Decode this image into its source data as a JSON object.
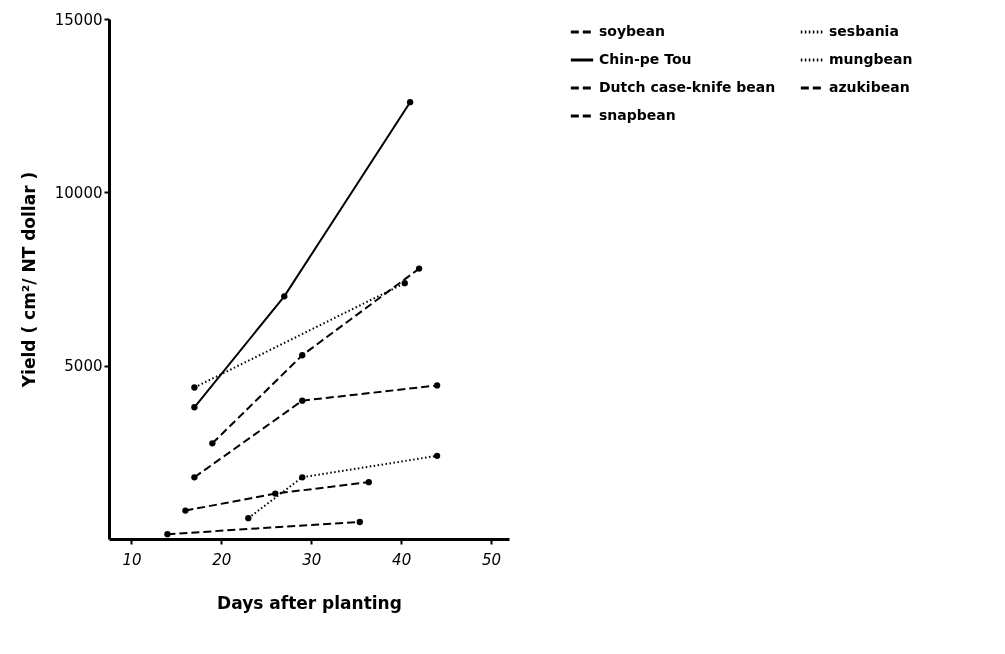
{
  "chart_data": {
    "type": "line",
    "xlabel": "Days after planting",
    "ylabel": "Yield ( cm²/ NT dollar )",
    "xlim": [
      7.5,
      52
    ],
    "xticks": [
      10,
      20,
      30,
      40,
      50
    ],
    "ylim": [
      0,
      15000
    ],
    "yticks": [
      5000,
      10000,
      15000
    ],
    "grid": false,
    "legend": "right",
    "marker": "circle",
    "series": [
      {
        "name": "soybean",
        "color": "#000000",
        "line_style": "dashed",
        "x": [
          16,
          26,
          36.4
        ],
        "values": [
          820,
          1310,
          1640
        ]
      },
      {
        "name": "Chin-pe Tou",
        "color": "#000000",
        "line_style": "solid",
        "x": [
          17,
          27,
          41
        ],
        "values": [
          3800,
          7000,
          12600
        ]
      },
      {
        "name": "Dutch case-knife bean",
        "color": "#000000",
        "line_style": "dashed",
        "x": [
          19,
          29,
          42
        ],
        "values": [
          2760,
          5300,
          7800
        ]
      },
      {
        "name": "snapbean",
        "color": "#000000",
        "line_style": "dashed",
        "x": [
          17,
          29,
          44
        ],
        "values": [
          1780,
          3990,
          4430
        ]
      },
      {
        "name": "sesbania",
        "color": "#000000",
        "line_style": "dotted",
        "x": [
          23,
          29,
          44
        ],
        "values": [
          600,
          1780,
          2400
        ]
      },
      {
        "name": "mungbean",
        "color": "#000000",
        "line_style": "dotted",
        "x": [
          17,
          40.4
        ],
        "values": [
          4370,
          7380
        ]
      },
      {
        "name": "azukibean",
        "color": "#000000",
        "line_style": "dashed",
        "x": [
          14,
          35.4
        ],
        "values": [
          140,
          490
        ]
      }
    ]
  }
}
